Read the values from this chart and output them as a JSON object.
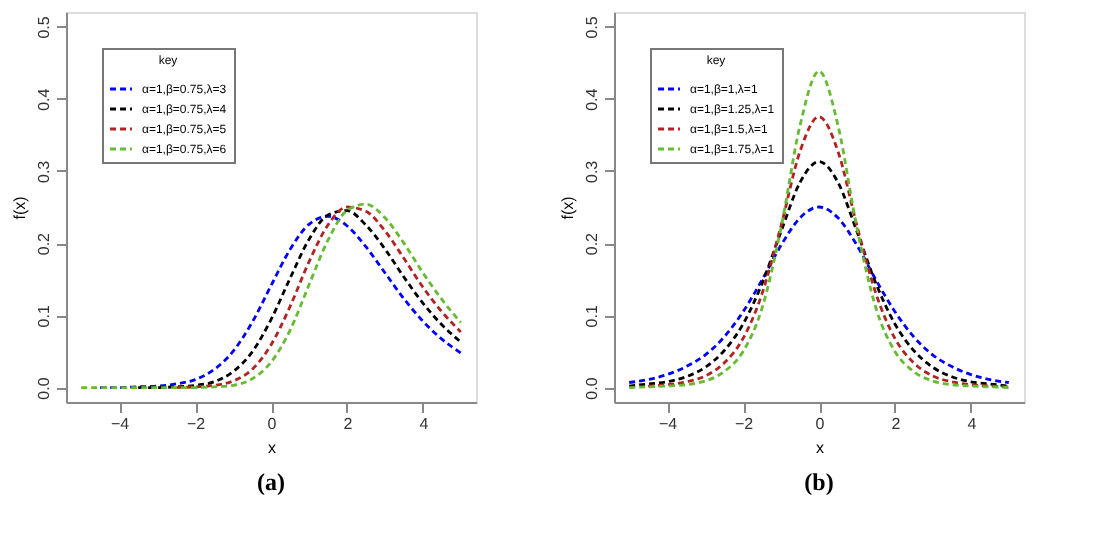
{
  "chart_data": [
    {
      "type": "line",
      "title": "(a)",
      "xlabel": "x",
      "ylabel": "f(x)",
      "legend_title": "key",
      "legend": "top left",
      "line_style": "dashed",
      "grid": false,
      "x": [
        -5,
        -4.5,
        -4,
        -3.5,
        -3,
        -2.5,
        -2,
        -1.5,
        -1,
        -0.5,
        0,
        0.5,
        1,
        1.5,
        2,
        2.5,
        3,
        3.5,
        4,
        4.5,
        5
      ],
      "xlim": [
        -5.4,
        5.4
      ],
      "xticks": [
        -4,
        -2,
        0,
        2,
        4
      ],
      "ylim": [
        -0.02,
        0.52
      ],
      "yticks": [
        {
          "value": 0,
          "label": "0.0"
        },
        {
          "value": 0.1,
          "label": "0.1"
        },
        {
          "value": 0.2,
          "label": "0.2"
        },
        {
          "value": 0.3,
          "label": "0.3"
        },
        {
          "value": 0.4,
          "label": "0.4"
        },
        {
          "value": 0.5,
          "label": "0.5"
        }
      ],
      "series": [
        {
          "name": "α=1,β=0.75,λ=3",
          "color": "#0000ff",
          "values": [
            null,
            0,
            0,
            0.001,
            0.002,
            0.005,
            0.011,
            0.025,
            0.05,
            0.09,
            0.141,
            0.191,
            0.226,
            0.237,
            0.224,
            0.195,
            0.159,
            0.123,
            0.092,
            0.067,
            0.048
          ]
        },
        {
          "name": "α=1,β=0.75,λ=4",
          "color": "#000000",
          "values": [
            null,
            null,
            null,
            0,
            0,
            0.001,
            0.003,
            0.008,
            0.022,
            0.049,
            0.094,
            0.151,
            0.205,
            0.239,
            0.245,
            0.225,
            0.192,
            0.153,
            0.117,
            0.087,
            0.063
          ]
        },
        {
          "name": "α=1,β=0.75,λ=5",
          "color": "#b22222",
          "values": [
            null,
            null,
            null,
            null,
            null,
            0,
            0.001,
            0.003,
            0.009,
            0.025,
            0.059,
            0.112,
            0.174,
            0.225,
            0.25,
            0.244,
            0.217,
            0.179,
            0.139,
            0.105,
            0.077
          ]
        },
        {
          "name": "α=1,β=0.75,λ=6",
          "color": "#66bb33",
          "values": [
            0,
            0,
            0,
            0,
            0,
            0,
            0,
            0.001,
            0.003,
            0.012,
            0.035,
            0.079,
            0.142,
            0.204,
            0.245,
            0.254,
            0.235,
            0.2,
            0.159,
            0.122,
            0.09
          ]
        }
      ]
    },
    {
      "type": "line",
      "title": "(b)",
      "xlabel": "x",
      "ylabel": "f(x)",
      "legend_title": "key",
      "legend": "top left",
      "line_style": "dashed",
      "grid": false,
      "x": [
        -5,
        -4.5,
        -4,
        -3.5,
        -3,
        -2.5,
        -2,
        -1.5,
        -1,
        -0.5,
        0,
        0.5,
        1,
        1.5,
        2,
        2.5,
        3,
        3.5,
        4,
        4.5,
        5
      ],
      "xlim": [
        -5.4,
        5.4
      ],
      "xticks": [
        -4,
        -2,
        0,
        2,
        4
      ],
      "ylim": [
        -0.02,
        0.52
      ],
      "yticks": [
        {
          "value": 0,
          "label": "0.0"
        },
        {
          "value": 0.1,
          "label": "0.1"
        },
        {
          "value": 0.2,
          "label": "0.2"
        },
        {
          "value": 0.3,
          "label": "0.3"
        },
        {
          "value": 0.4,
          "label": "0.4"
        },
        {
          "value": 0.5,
          "label": "0.5"
        }
      ],
      "series": [
        {
          "name": "α=1,β=1,λ=1",
          "color": "#0000ff",
          "values": [
            0.007,
            0.011,
            0.018,
            0.029,
            0.045,
            0.07,
            0.105,
            0.149,
            0.197,
            0.235,
            0.25,
            0.235,
            0.197,
            0.149,
            0.105,
            0.07,
            0.045,
            0.029,
            0.018,
            0.011,
            0.007
          ]
        },
        {
          "name": "α=1,β=1.25,λ=1",
          "color": "#000000",
          "values": [
            0.002,
            0.005,
            0.008,
            0.015,
            0.028,
            0.051,
            0.088,
            0.144,
            0.216,
            0.284,
            0.313,
            0.284,
            0.216,
            0.144,
            0.088,
            0.051,
            0.028,
            0.015,
            0.008,
            0.005,
            0.002
          ]
        },
        {
          "name": "α=1,β=1.5,λ=1",
          "color": "#b22222",
          "values": [
            null,
            0.002,
            0.004,
            0.008,
            0.016,
            0.034,
            0.068,
            0.13,
            0.224,
            0.327,
            0.375,
            0.327,
            0.224,
            0.13,
            0.068,
            0.034,
            0.016,
            0.008,
            0.004,
            0.002,
            0.001
          ]
        },
        {
          "name": "α=1,β=1.75,λ=1",
          "color": "#66bb33",
          "values": [
            0,
            0.001,
            0.002,
            0.004,
            0.009,
            0.022,
            0.05,
            0.11,
            0.221,
            0.363,
            0.438,
            0.363,
            0.221,
            0.11,
            0.05,
            0.022,
            0.009,
            0.004,
            0.002,
            0.001,
            0
          ]
        }
      ]
    }
  ]
}
